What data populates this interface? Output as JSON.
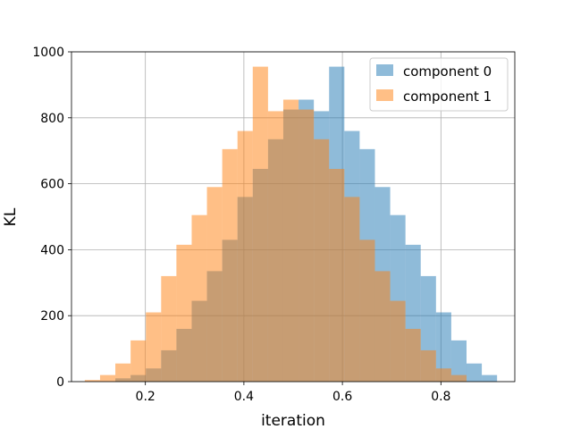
{
  "chart_data": {
    "type": "bar",
    "subtype": "overlapping-histogram",
    "xlabel": "iteration",
    "ylabel": "KL",
    "xlim": [
      0.05,
      0.95
    ],
    "ylim": [
      0,
      1000
    ],
    "xticks": [
      "0.2",
      "0.4",
      "0.6",
      "0.8"
    ],
    "yticks": [
      "0",
      "200",
      "400",
      "600",
      "800",
      "1000"
    ],
    "grid": true,
    "legend_position": "top-right",
    "bin_width": 0.031,
    "series": [
      {
        "name": "component 0",
        "color": "#1f77b4",
        "opacity": 0.5,
        "bin_starts": [
          0.139,
          0.17,
          0.201,
          0.232,
          0.263,
          0.294,
          0.325,
          0.356,
          0.387,
          0.418,
          0.449,
          0.48,
          0.511,
          0.542,
          0.573,
          0.604,
          0.635,
          0.666,
          0.697,
          0.728,
          0.759,
          0.79,
          0.821,
          0.852,
          0.883
        ],
        "values": [
          10,
          20,
          40,
          95,
          160,
          245,
          335,
          430,
          560,
          645,
          735,
          825,
          855,
          820,
          955,
          760,
          705,
          590,
          505,
          415,
          320,
          210,
          125,
          55,
          20
        ]
      },
      {
        "name": "component 1",
        "color": "#ff7f0e",
        "opacity": 0.5,
        "bin_starts": [
          0.077,
          0.108,
          0.139,
          0.17,
          0.201,
          0.232,
          0.263,
          0.294,
          0.325,
          0.356,
          0.387,
          0.418,
          0.449,
          0.48,
          0.511,
          0.542,
          0.573,
          0.604,
          0.635,
          0.666,
          0.697,
          0.728,
          0.759,
          0.79,
          0.821
        ],
        "values": [
          5,
          20,
          55,
          125,
          210,
          320,
          415,
          505,
          590,
          705,
          760,
          955,
          820,
          855,
          825,
          735,
          645,
          560,
          430,
          335,
          245,
          160,
          95,
          40,
          20
        ]
      }
    ]
  }
}
